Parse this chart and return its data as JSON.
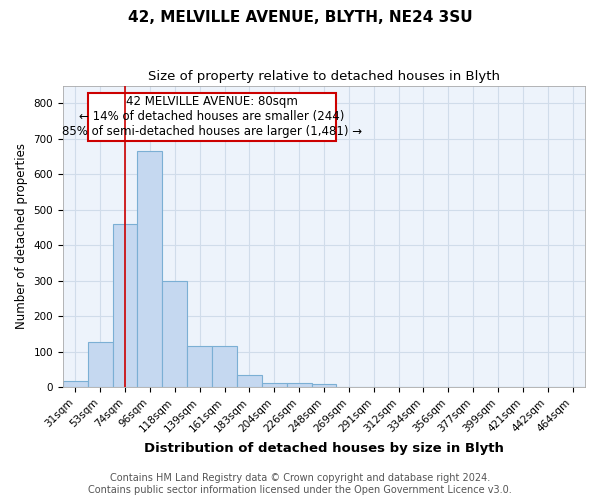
{
  "title1": "42, MELVILLE AVENUE, BLYTH, NE24 3SU",
  "title2": "Size of property relative to detached houses in Blyth",
  "xlabel": "Distribution of detached houses by size in Blyth",
  "ylabel": "Number of detached properties",
  "categories": [
    "31sqm",
    "53sqm",
    "74sqm",
    "96sqm",
    "118sqm",
    "139sqm",
    "161sqm",
    "183sqm",
    "204sqm",
    "226sqm",
    "248sqm",
    "269sqm",
    "291sqm",
    "312sqm",
    "334sqm",
    "356sqm",
    "377sqm",
    "399sqm",
    "421sqm",
    "442sqm",
    "464sqm"
  ],
  "bar_heights": [
    18,
    127,
    460,
    665,
    300,
    115,
    115,
    35,
    12,
    12,
    10,
    0,
    0,
    0,
    0,
    0,
    0,
    0,
    0,
    0,
    0
  ],
  "bar_color": "#c5d8f0",
  "bar_edge_color": "#7bafd4",
  "vline_x": 2.0,
  "vline_color": "#cc0000",
  "annotation_text": "42 MELVILLE AVENUE: 80sqm\n← 14% of detached houses are smaller (244)\n85% of semi-detached houses are larger (1,481) →",
  "annotation_box_color": "#ffffff",
  "annotation_box_edge_color": "#cc0000",
  "ylim": [
    0,
    850
  ],
  "yticks": [
    0,
    100,
    200,
    300,
    400,
    500,
    600,
    700,
    800
  ],
  "fig_background_color": "#ffffff",
  "axes_background_color": "#edf3fb",
  "grid_color": "#d0dcea",
  "footer_line1": "Contains HM Land Registry data © Crown copyright and database right 2024.",
  "footer_line2": "Contains public sector information licensed under the Open Government Licence v3.0.",
  "title1_fontsize": 11,
  "title2_fontsize": 9.5,
  "xlabel_fontsize": 9.5,
  "ylabel_fontsize": 8.5,
  "tick_fontsize": 7.5,
  "footer_fontsize": 7,
  "annotation_fontsize": 8.5
}
